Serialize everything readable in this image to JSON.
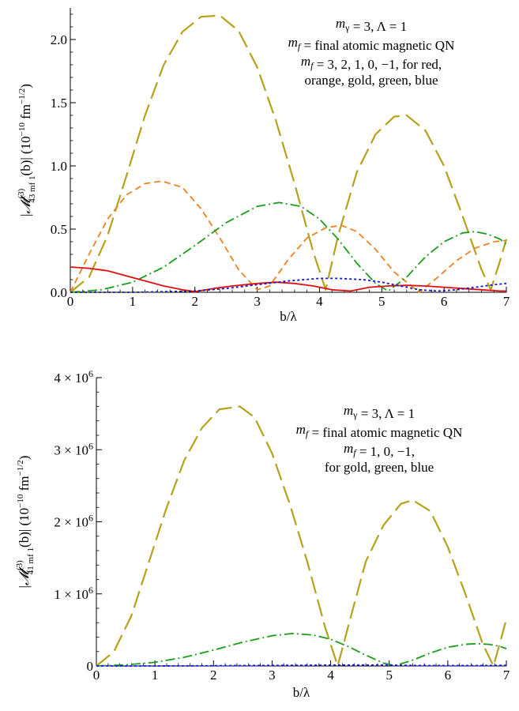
{
  "chart_data": [
    {
      "type": "line",
      "xlabel": "b/λ",
      "ylabel": "|𝓜(3)43 mf 1(b)| (10⁻¹⁰ fm⁻¹ᐟ²)",
      "ylabel_parts": {
        "prefix": "|",
        "symbol": "𝓜",
        "sup": "(3)",
        "sub": "43 mf 1",
        "arg": "(b)|  (10",
        "exp": "−10",
        "unit": " fm",
        "unit_exp": "−1/2",
        "close": ")"
      },
      "xlim": [
        0,
        7
      ],
      "ylim": [
        0,
        2.25
      ],
      "xticks": [
        "0",
        "1",
        "2",
        "3",
        "4",
        "5",
        "6",
        "7"
      ],
      "yticks": [
        {
          "value": 0.0,
          "label": "0.0"
        },
        {
          "value": 0.5,
          "label": "0.5"
        },
        {
          "value": 1.0,
          "label": "1.0"
        },
        {
          "value": 1.5,
          "label": "1.5"
        },
        {
          "value": 2.0,
          "label": "2.0"
        }
      ],
      "annotation": [
        "m_γ = 3,  Λ = 1",
        "m_f = final atomic magnetic QN",
        "m_f = 3, 2, 1, 0, −1, for red,",
        "orange, gold, green, blue"
      ],
      "annotation_rich": [
        [
          {
            "t": "m",
            "i": true
          },
          {
            "t": "γ",
            "sub": true
          },
          {
            "t": " = 3,  Λ = 1"
          }
        ],
        [
          {
            "t": "m",
            "i": true
          },
          {
            "t": "f",
            "sub": true,
            "i": true
          },
          {
            "t": " = final atomic magnetic QN"
          }
        ],
        [
          {
            "t": "m",
            "i": true
          },
          {
            "t": "f",
            "sub": true,
            "i": true
          },
          {
            "t": " = 3, 2, 1, 0, −1, for red,"
          }
        ],
        [
          {
            "t": "orange, gold, green, blue"
          }
        ]
      ],
      "series": [
        {
          "color": "#B5A21A",
          "dash": "22,8",
          "width": 2.2,
          "x": [
            0,
            0.3,
            0.6,
            0.9,
            1.2,
            1.5,
            1.8,
            2.1,
            2.4,
            2.7,
            3.0,
            3.3,
            3.6,
            3.9,
            4.1,
            4.3,
            4.6,
            4.9,
            5.2,
            5.4,
            5.7,
            6.0,
            6.3,
            6.6,
            6.75,
            6.9,
            7.0
          ],
          "y": [
            0,
            0.12,
            0.45,
            0.92,
            1.4,
            1.8,
            2.06,
            2.18,
            2.19,
            2.07,
            1.78,
            1.36,
            0.86,
            0.32,
            0.02,
            0.45,
            0.95,
            1.25,
            1.39,
            1.4,
            1.28,
            1.0,
            0.6,
            0.18,
            0.02,
            0.25,
            0.42
          ]
        },
        {
          "color": "#F08020",
          "dash": "8,5",
          "width": 1.8,
          "x": [
            0,
            0.3,
            0.6,
            0.9,
            1.2,
            1.47,
            1.8,
            2.1,
            2.4,
            2.7,
            3.0,
            3.2,
            3.5,
            3.8,
            4.1,
            4.35,
            4.6,
            4.9,
            5.2,
            5.6,
            5.9,
            6.2,
            6.5,
            6.8,
            7.0
          ],
          "y": [
            0,
            0.3,
            0.58,
            0.77,
            0.86,
            0.88,
            0.83,
            0.66,
            0.43,
            0.18,
            0.02,
            0.05,
            0.26,
            0.43,
            0.51,
            0.53,
            0.48,
            0.34,
            0.16,
            0,
            0.12,
            0.25,
            0.35,
            0.4,
            0.41
          ]
        },
        {
          "color": "#1A9E1A",
          "dash": "12,4,2,4",
          "width": 1.8,
          "x": [
            0,
            0.5,
            1.0,
            1.5,
            2.0,
            2.5,
            3.0,
            3.35,
            3.7,
            4.0,
            4.3,
            4.6,
            4.9,
            5.1,
            5.4,
            5.7,
            6.0,
            6.3,
            6.5,
            6.7,
            6.9,
            7.0
          ],
          "y": [
            0,
            0.02,
            0.08,
            0.2,
            0.37,
            0.55,
            0.68,
            0.71,
            0.68,
            0.58,
            0.42,
            0.23,
            0.07,
            0.01,
            0.12,
            0.28,
            0.4,
            0.47,
            0.48,
            0.46,
            0.42,
            0.38
          ]
        },
        {
          "color": "#E01010",
          "dash": "",
          "width": 1.8,
          "x": [
            0,
            0.3,
            0.6,
            0.9,
            1.2,
            1.5,
            1.8,
            2.0,
            2.3,
            2.6,
            3.0,
            3.3,
            3.6,
            3.9,
            4.2,
            4.5,
            4.8,
            5.1,
            5.4,
            5.7,
            6.0,
            6.3,
            6.6,
            6.9,
            7.0
          ],
          "y": [
            0.2,
            0.19,
            0.17,
            0.13,
            0.09,
            0.05,
            0.02,
            0.005,
            0.03,
            0.05,
            0.07,
            0.08,
            0.07,
            0.05,
            0.02,
            0.01,
            0.04,
            0.05,
            0.055,
            0.05,
            0.04,
            0.03,
            0.02,
            0.01,
            0.01
          ]
        },
        {
          "color": "#1515D0",
          "dash": "3,3",
          "width": 1.8,
          "x": [
            0,
            1.0,
            2.0,
            2.5,
            3.0,
            3.5,
            4.0,
            4.3,
            4.7,
            5.0,
            5.3,
            5.6,
            5.9,
            6.2,
            6.5,
            6.8,
            7.0
          ],
          "y": [
            0,
            0,
            0.01,
            0.03,
            0.06,
            0.09,
            0.11,
            0.11,
            0.1,
            0.08,
            0.05,
            0.02,
            0.01,
            0.02,
            0.04,
            0.06,
            0.07
          ]
        }
      ]
    },
    {
      "type": "line",
      "xlabel": "b/λ",
      "ylabel": "|𝓜(3)41 mf 1(b)| (10⁻¹⁰ fm⁻¹ᐟ²)",
      "ylabel_parts": {
        "prefix": "|",
        "symbol": "𝓜",
        "sup": "(3)",
        "sub": "41 mf 1",
        "arg": "(b)|  (10",
        "exp": "−10",
        "unit": " fm",
        "unit_exp": "−1/2",
        "close": ")"
      },
      "xlim": [
        0,
        7
      ],
      "ylim": [
        0,
        4000000
      ],
      "xticks": [
        "0",
        "1",
        "2",
        "3",
        "4",
        "5",
        "6",
        "7"
      ],
      "yticks": [
        {
          "value": 0,
          "label": "0",
          "exp": ""
        },
        {
          "value": 1000000,
          "label": "1 × 10",
          "exp": "6"
        },
        {
          "value": 2000000,
          "label": "2 × 10",
          "exp": "6"
        },
        {
          "value": 3000000,
          "label": "3 × 10",
          "exp": "6"
        },
        {
          "value": 4000000,
          "label": "4 × 10",
          "exp": "6"
        }
      ],
      "annotation": [
        "m_γ = 3,  Λ = 1",
        "m_f = final atomic magnetic QN",
        "m_f = 1, 0, −1,",
        "for gold, green, blue"
      ],
      "annotation_rich": [
        [
          {
            "t": "m",
            "i": true
          },
          {
            "t": "γ",
            "sub": true
          },
          {
            "t": " = 3,  Λ = 1"
          }
        ],
        [
          {
            "t": "m",
            "i": true
          },
          {
            "t": "f",
            "sub": true,
            "i": true
          },
          {
            "t": " = final atomic magnetic QN"
          }
        ],
        [
          {
            "t": "m",
            "i": true
          },
          {
            "t": "f",
            "sub": true,
            "i": true
          },
          {
            "t": " = 1, 0, −1,"
          }
        ],
        [
          {
            "t": "for gold, green, blue"
          }
        ]
      ],
      "series": [
        {
          "color": "#B5A21A",
          "dash": "22,8",
          "width": 2.2,
          "x": [
            0,
            0.3,
            0.6,
            0.9,
            1.2,
            1.5,
            1.8,
            2.1,
            2.45,
            2.7,
            3.0,
            3.3,
            3.6,
            3.9,
            4.12,
            4.35,
            4.6,
            4.9,
            5.2,
            5.4,
            5.7,
            6.0,
            6.3,
            6.6,
            6.78,
            6.9,
            7.0
          ],
          "y": [
            0,
            200000,
            700000,
            1450000,
            2200000,
            2850000,
            3300000,
            3560000,
            3600000,
            3450000,
            2950000,
            2250000,
            1450000,
            550000,
            0,
            700000,
            1450000,
            1950000,
            2250000,
            2300000,
            2150000,
            1650000,
            1000000,
            300000,
            0,
            350000,
            650000
          ]
        },
        {
          "color": "#1A9E1A",
          "dash": "12,4,2,4",
          "width": 1.8,
          "x": [
            0,
            0.5,
            1.0,
            1.5,
            2.0,
            2.5,
            3.0,
            3.35,
            3.7,
            4.0,
            4.3,
            4.6,
            4.9,
            5.1,
            5.4,
            5.7,
            6.0,
            6.3,
            6.5,
            6.7,
            6.9,
            7.0
          ],
          "y": [
            0,
            15000,
            50000,
            120000,
            220000,
            330000,
            420000,
            450000,
            430000,
            370000,
            270000,
            150000,
            40000,
            5000,
            80000,
            180000,
            260000,
            300000,
            310000,
            300000,
            270000,
            240000
          ]
        },
        {
          "color": "#1515D0",
          "dash": "3,3",
          "width": 1.8,
          "x": [
            0,
            1.0,
            2.0,
            3.0,
            4.0,
            4.5,
            5.0,
            5.5,
            6.0,
            6.5,
            7.0
          ],
          "y": [
            0,
            0,
            3000,
            8000,
            12000,
            13000,
            11000,
            7000,
            4000,
            6000,
            9000
          ]
        }
      ]
    }
  ]
}
